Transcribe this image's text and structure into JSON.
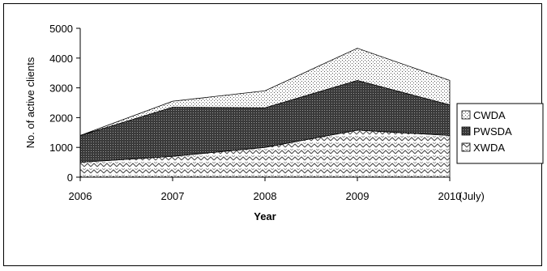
{
  "chart_data": {
    "type": "area",
    "stacked": true,
    "title": "",
    "xlabel": "Year",
    "ylabel": "No. of active clients",
    "categories": [
      "2006",
      "2007",
      "2008",
      "2009",
      "2010"
    ],
    "x_note": "(July)",
    "ylim": [
      0,
      5000
    ],
    "yticks": [
      "0",
      "1000",
      "2000",
      "3000",
      "4000",
      "5000"
    ],
    "grid": false,
    "legend_position": "right",
    "series": [
      {
        "name": "XWDA",
        "values": [
          500,
          700,
          1000,
          1580,
          1400
        ],
        "pattern": "zigzag"
      },
      {
        "name": "PWSDA",
        "values": [
          900,
          1650,
          1330,
          1670,
          1030
        ],
        "pattern": "dark-dots"
      },
      {
        "name": "CWDA",
        "values": [
          0,
          200,
          570,
          1080,
          820
        ],
        "pattern": "light-dots"
      }
    ],
    "legend_order": [
      "CWDA",
      "PWSDA",
      "XWDA"
    ]
  }
}
